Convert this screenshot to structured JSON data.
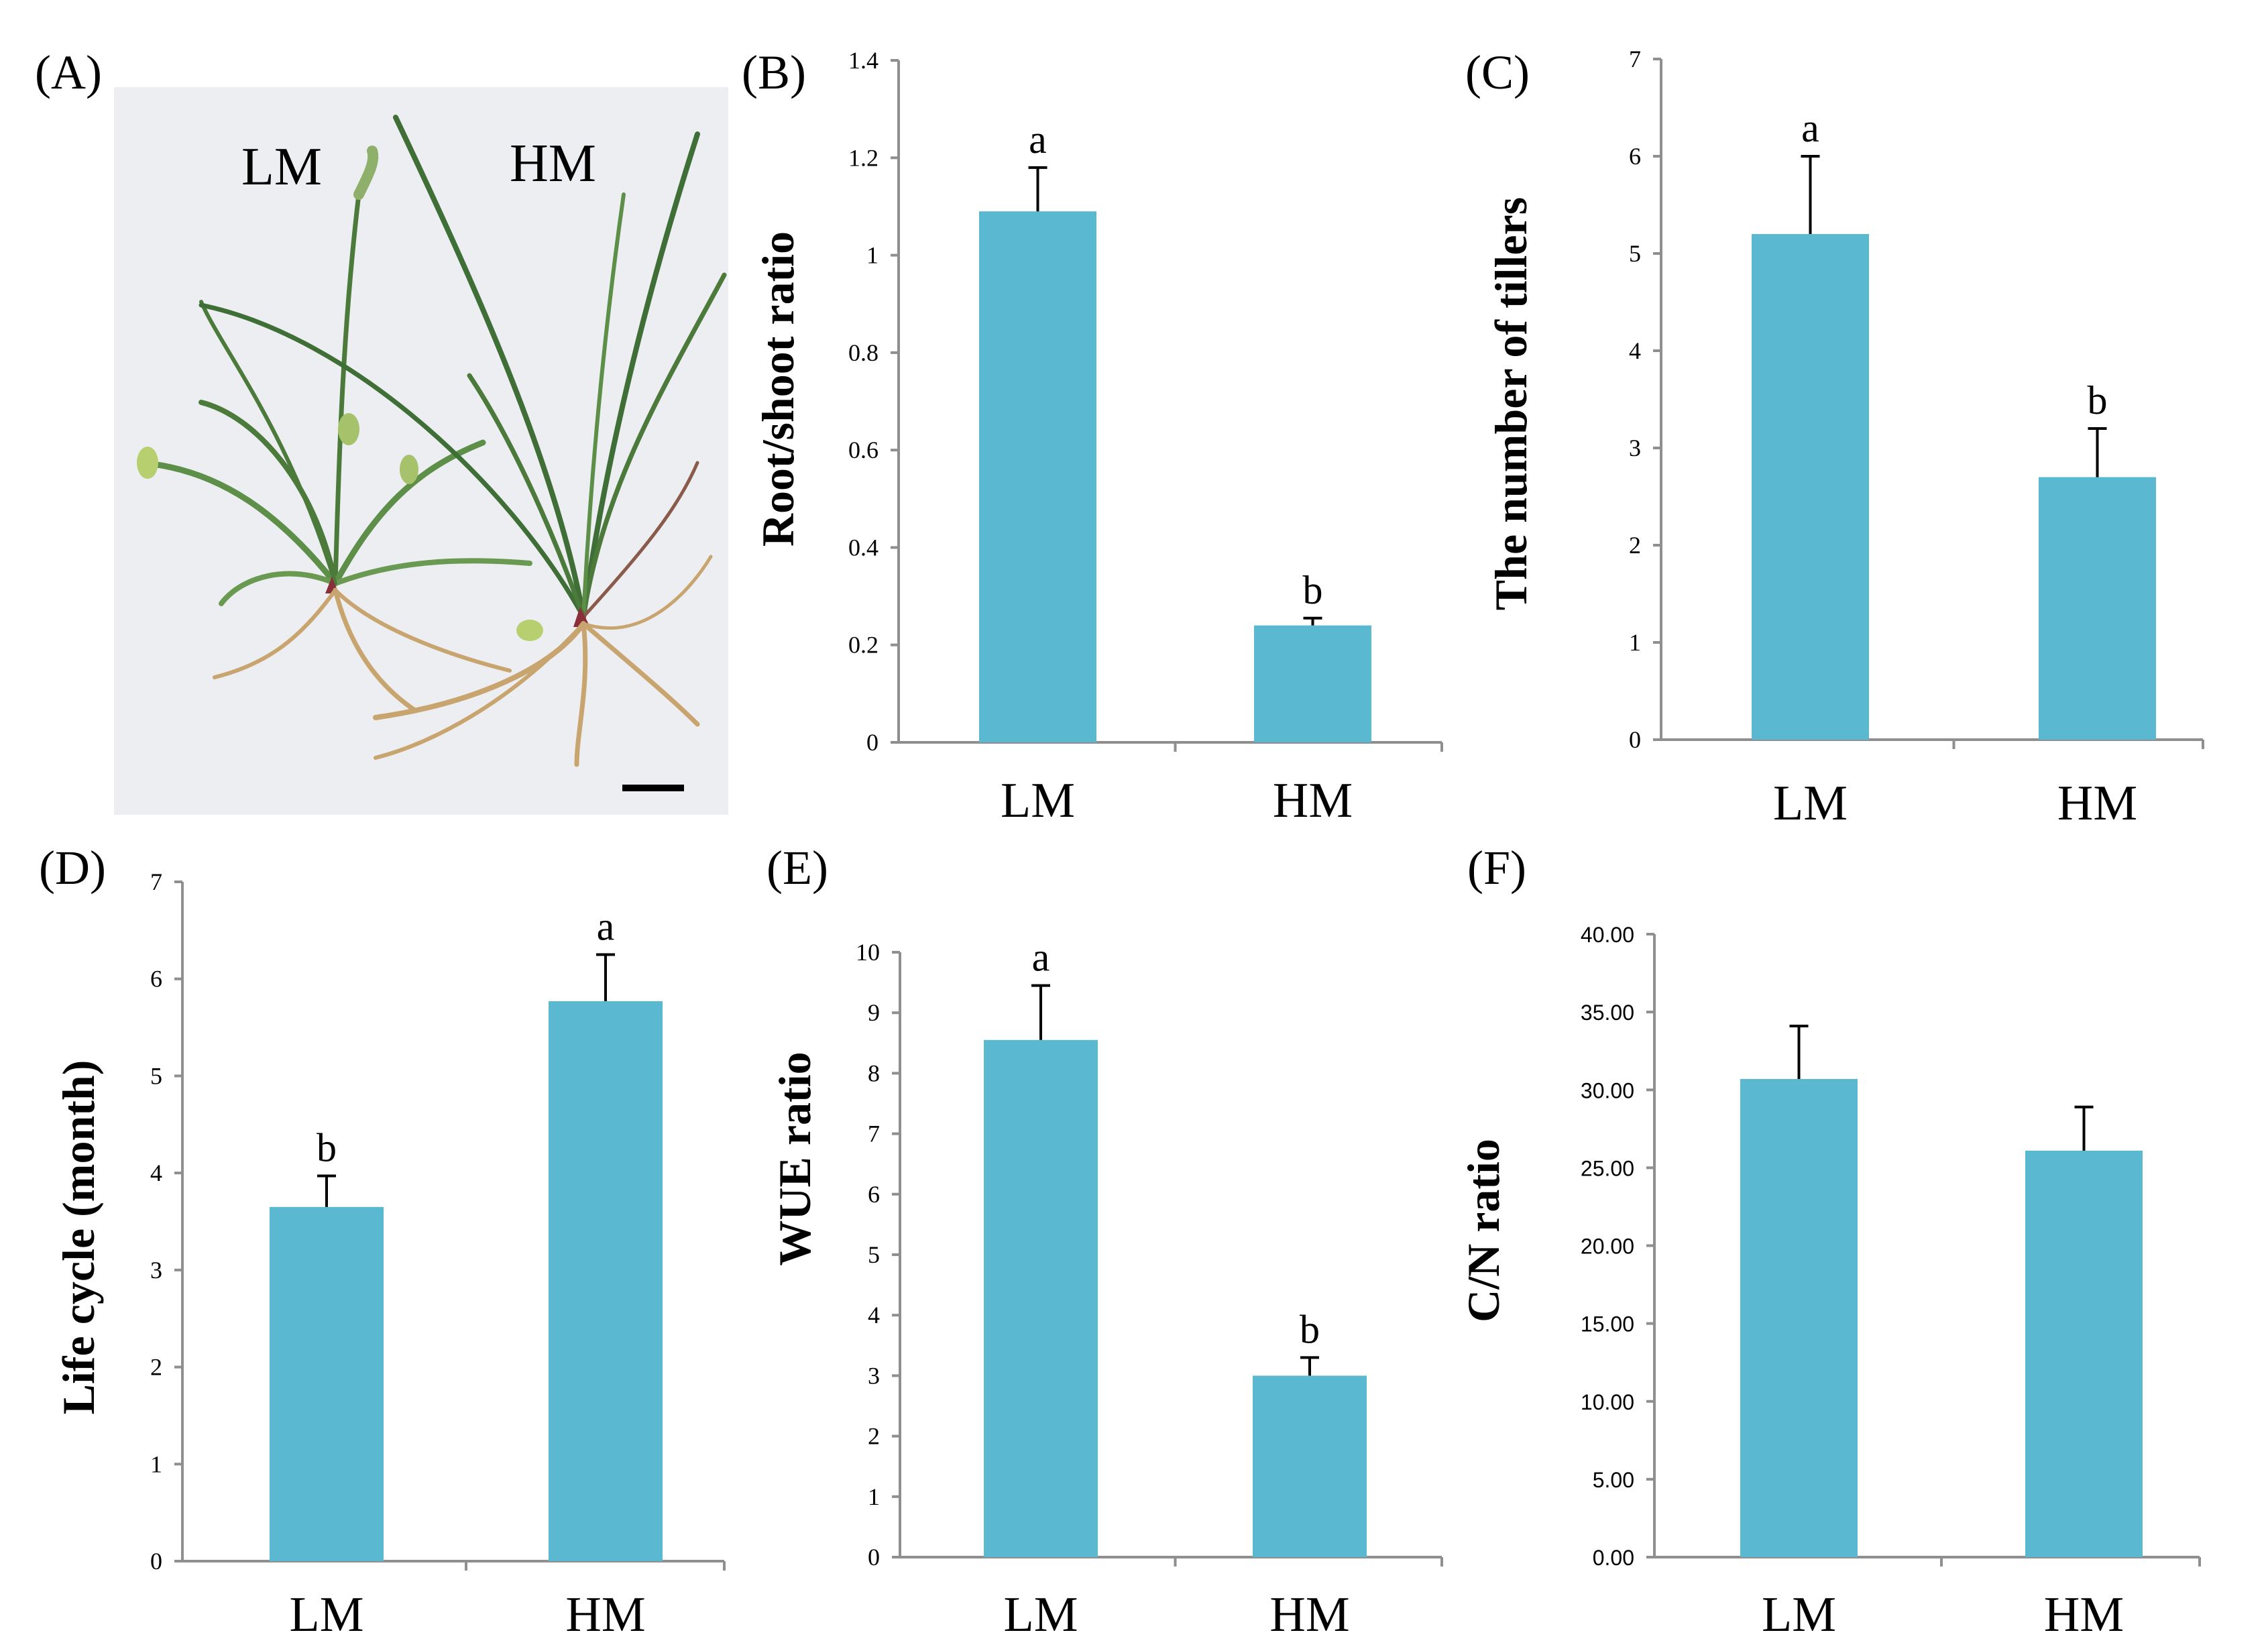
{
  "figure": {
    "panel_a": {
      "letter": "(A)",
      "label_left": "LM",
      "label_right": "HM",
      "illustration": "photo of two grass plants, LM and HM, with roots; scale bar"
    }
  },
  "colors": {
    "bar": "#5ab8d1",
    "axis": "#8f8f8f",
    "photo_bg": "#eceef2",
    "leaf": "#4c7a3b",
    "root": "#c8a46e"
  },
  "chart_data": [
    {
      "id": "B",
      "letter": "(B)",
      "type": "bar",
      "categories": [
        "LM",
        "HM"
      ],
      "values": [
        1.09,
        0.24
      ],
      "errors": [
        0.09,
        0.015
      ],
      "sig": [
        "a",
        "b"
      ],
      "ylabel": "Root/shoot ratio",
      "ylim": [
        0,
        1.4
      ],
      "ticks": [
        "0",
        "0.2",
        "0.4",
        "0.6",
        "0.8",
        "1",
        "1.2",
        "1.4"
      ],
      "tick_font": "serif"
    },
    {
      "id": "C",
      "letter": "(C)",
      "type": "bar",
      "categories": [
        "LM",
        "HM"
      ],
      "values": [
        5.2,
        2.7
      ],
      "errors": [
        0.8,
        0.5
      ],
      "sig": [
        "a",
        "b"
      ],
      "ylabel": "The number of tillers",
      "ylim": [
        0,
        7
      ],
      "ticks": [
        "0",
        "1",
        "2",
        "3",
        "4",
        "5",
        "6",
        "7"
      ],
      "tick_font": "serif"
    },
    {
      "id": "D",
      "letter": "(D)",
      "type": "bar",
      "categories": [
        "LM",
        "HM"
      ],
      "values": [
        3.65,
        5.77
      ],
      "errors": [
        0.32,
        0.48
      ],
      "sig": [
        "b",
        "a"
      ],
      "ylabel": "Life cycle (month)",
      "ylim": [
        0,
        7
      ],
      "ticks": [
        "0",
        "1",
        "2",
        "3",
        "4",
        "5",
        "6",
        "7"
      ],
      "tick_font": "serif"
    },
    {
      "id": "E",
      "letter": "(E)",
      "type": "bar",
      "categories": [
        "LM",
        "HM"
      ],
      "values": [
        8.55,
        3.0
      ],
      "errors": [
        0.9,
        0.3
      ],
      "sig": [
        "a",
        "b"
      ],
      "ylabel": "WUE ratio",
      "ylim": [
        0,
        10
      ],
      "ticks": [
        "0",
        "1",
        "2",
        "3",
        "4",
        "5",
        "6",
        "7",
        "8",
        "9",
        "10"
      ],
      "tick_font": "serif"
    },
    {
      "id": "F",
      "letter": "(F)",
      "type": "bar",
      "categories": [
        "LM",
        "HM"
      ],
      "values": [
        30.7,
        26.1
      ],
      "errors": [
        3.4,
        2.8
      ],
      "sig": [
        "",
        ""
      ],
      "ylabel": "C/N  ratio",
      "ylim": [
        0,
        40
      ],
      "ticks": [
        "0.00",
        "5.00",
        "10.00",
        "15.00",
        "20.00",
        "25.00",
        "30.00",
        "35.00",
        "40.00"
      ],
      "tick_font": "sans"
    }
  ]
}
